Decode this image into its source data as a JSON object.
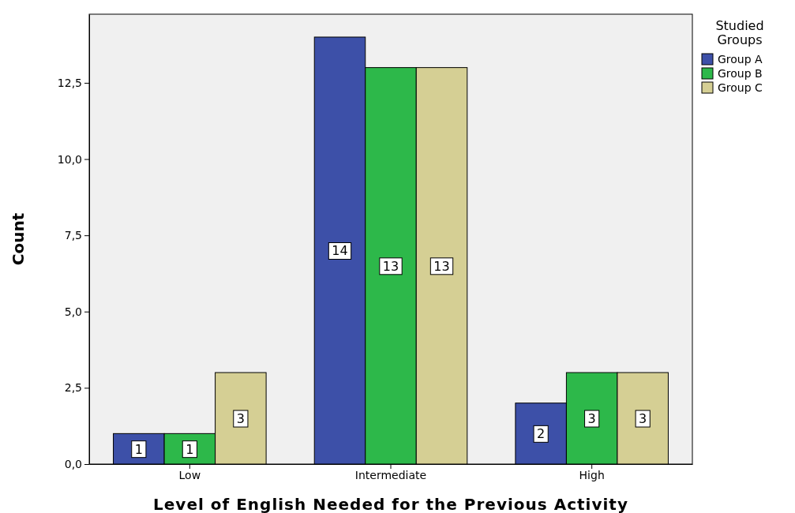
{
  "chart_data": {
    "type": "bar",
    "xlabel": "Level of English Needed for the Previous Activity",
    "ylabel": "Count",
    "legend_title": "Studied Groups",
    "categories": [
      "Low",
      "Intermediate",
      "High"
    ],
    "series": [
      {
        "name": "Group A",
        "color": "#3d50a8",
        "values": [
          1,
          14,
          2
        ]
      },
      {
        "name": "Group B",
        "color": "#2db84a",
        "values": [
          1,
          13,
          3
        ]
      },
      {
        "name": "Group C",
        "color": "#d5cf94",
        "values": [
          3,
          13,
          3
        ]
      }
    ],
    "ylim": [
      0,
      14.75
    ],
    "yticks": [
      {
        "value": 0,
        "label": "0,0"
      },
      {
        "value": 2.5,
        "label": "2,5"
      },
      {
        "value": 5,
        "label": "5,0"
      },
      {
        "value": 7.5,
        "label": "7,5"
      },
      {
        "value": 10,
        "label": "10,0"
      },
      {
        "value": 12.5,
        "label": "12,5"
      }
    ],
    "data_labels": true,
    "legend": "right",
    "grid": false
  }
}
